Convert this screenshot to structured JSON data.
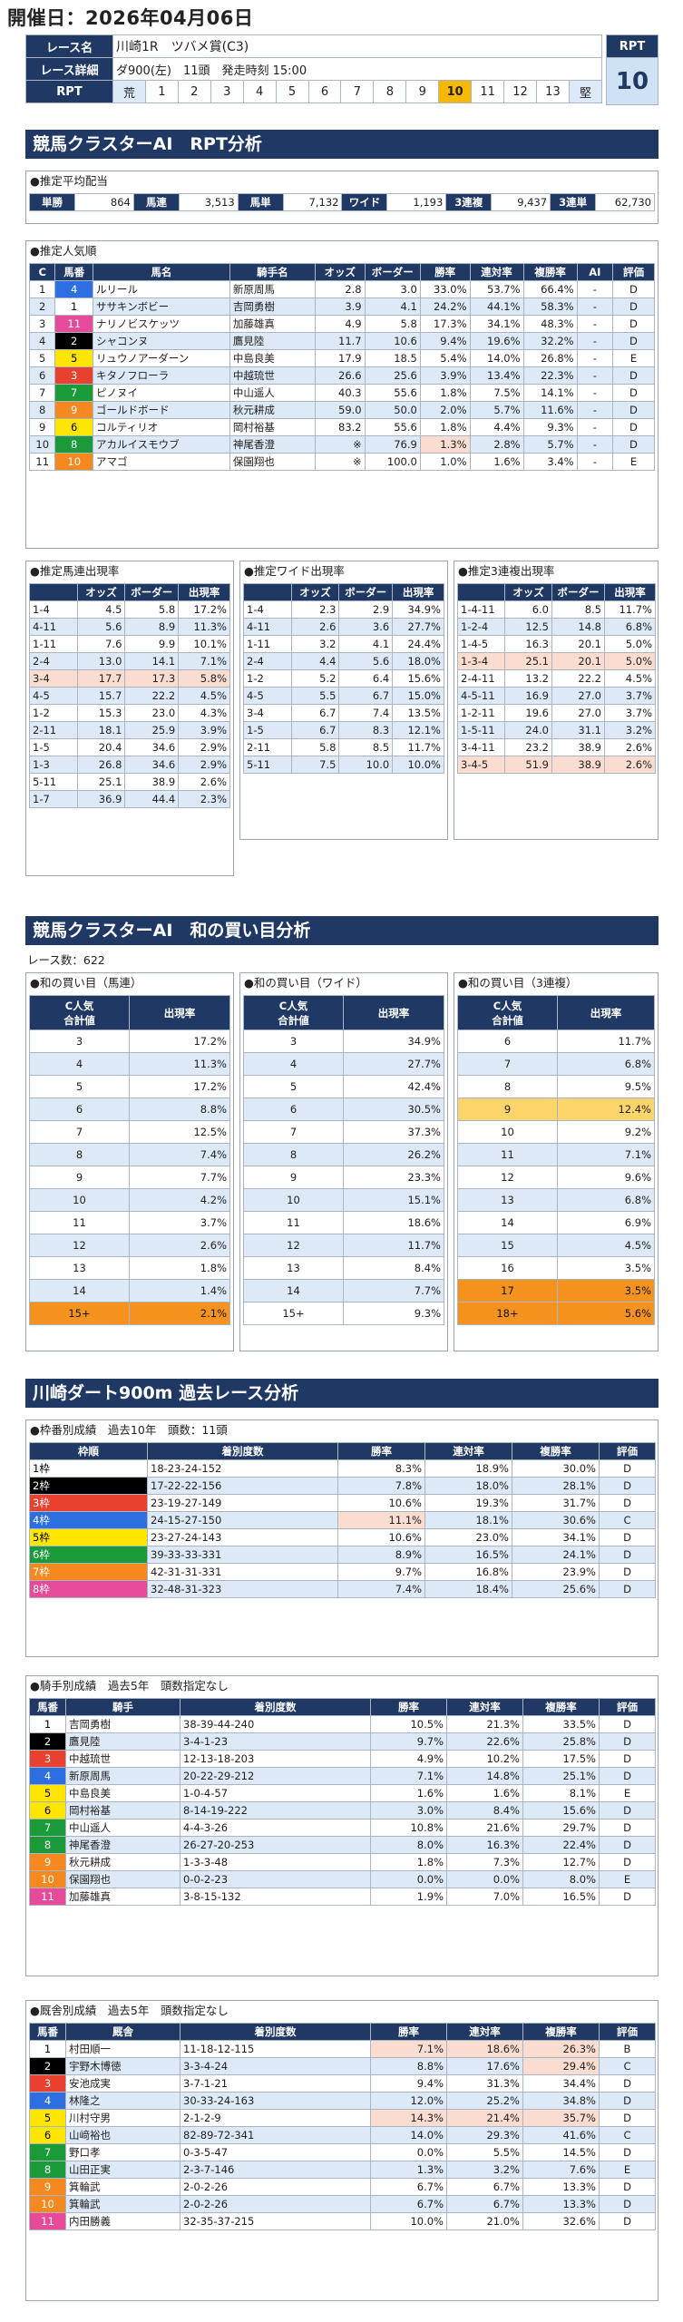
{
  "header": {
    "date": "開催日：2026年04月06日",
    "race_name_label": "レース名",
    "race_name": "川崎1R　ツバメ賞(C3)",
    "race_detail_label": "レース詳細",
    "race_detail": "ダ900(左)　11頭　発走時刻 15:00",
    "rpt_label": "RPT",
    "rpt_scale": [
      "荒",
      "1",
      "2",
      "3",
      "4",
      "5",
      "6",
      "7",
      "8",
      "9",
      "10",
      "11",
      "12",
      "13",
      "堅"
    ],
    "rpt_selected": "10",
    "rpt_box_label": "RPT",
    "rpt_box_value": "10"
  },
  "section1": {
    "title": "競馬クラスターAI　RPT分析"
  },
  "payout": {
    "title": "●推定平均配当",
    "items": [
      {
        "label": "単勝",
        "value": "864"
      },
      {
        "label": "馬連",
        "value": "3,513"
      },
      {
        "label": "馬単",
        "value": "7,132"
      },
      {
        "label": "ワイド",
        "value": "1,193"
      },
      {
        "label": "3連複",
        "value": "9,437"
      },
      {
        "label": "3連単",
        "value": "62,730"
      }
    ]
  },
  "popularity": {
    "title": "●推定人気順",
    "headers": [
      "C",
      "馬番",
      "馬名",
      "騎手名",
      "オッズ",
      "ボーダー",
      "勝率",
      "連対率",
      "複勝率",
      "AI",
      "評価"
    ],
    "rows": [
      [
        "1",
        "4",
        "ルリール",
        "新原周馬",
        "2.8",
        "3.0",
        "33.0%",
        "53.7%",
        "66.4%",
        "-",
        "D"
      ],
      [
        "2",
        "1",
        "ササキンボビー",
        "吉岡勇樹",
        "3.9",
        "4.1",
        "24.2%",
        "44.1%",
        "58.3%",
        "-",
        "D"
      ],
      [
        "3",
        "11",
        "ナリノビスケッツ",
        "加藤雄真",
        "4.9",
        "5.8",
        "17.3%",
        "34.1%",
        "48.3%",
        "-",
        "D"
      ],
      [
        "4",
        "2",
        "シャコンヌ",
        "鷹見陸",
        "11.7",
        "10.6",
        "9.4%",
        "19.6%",
        "32.2%",
        "-",
        "D"
      ],
      [
        "5",
        "5",
        "リュウノアーダーン",
        "中島良美",
        "17.9",
        "18.5",
        "5.4%",
        "14.0%",
        "26.8%",
        "-",
        "E"
      ],
      [
        "6",
        "3",
        "キタノフローラ",
        "中越琉世",
        "26.6",
        "25.6",
        "3.9%",
        "13.4%",
        "22.3%",
        "-",
        "D"
      ],
      [
        "7",
        "7",
        "ピノヌイ",
        "中山遥人",
        "40.3",
        "55.6",
        "1.8%",
        "7.5%",
        "14.1%",
        "-",
        "D"
      ],
      [
        "8",
        "9",
        "ゴールドボード",
        "秋元耕成",
        "59.0",
        "50.0",
        "2.0%",
        "5.7%",
        "11.6%",
        "-",
        "D"
      ],
      [
        "9",
        "6",
        "コルティリオ",
        "岡村裕基",
        "83.2",
        "55.6",
        "1.8%",
        "4.4%",
        "9.3%",
        "-",
        "D"
      ],
      [
        "10",
        "8",
        "アカルイスモウブ",
        "神尾香澄",
        "※",
        "76.9",
        "1.3%",
        "2.8%",
        "5.7%",
        "-",
        "D"
      ],
      [
        "11",
        "10",
        "アマゴ",
        "保園翔也",
        "※",
        "100.0",
        "1.0%",
        "1.6%",
        "3.4%",
        "-",
        "E"
      ]
    ]
  },
  "umaren": {
    "title": "●推定馬連出現率",
    "headers": [
      "",
      "オッズ",
      "ボーダー",
      "出現率"
    ],
    "rows": [
      [
        "1-4",
        "4.5",
        "5.8",
        "17.2%"
      ],
      [
        "4-11",
        "5.6",
        "8.9",
        "11.3%"
      ],
      [
        "1-11",
        "7.6",
        "9.9",
        "10.1%"
      ],
      [
        "2-4",
        "13.0",
        "14.1",
        "7.1%"
      ],
      [
        "3-4",
        "17.7",
        "17.3",
        "5.8%"
      ],
      [
        "4-5",
        "15.7",
        "22.2",
        "4.5%"
      ],
      [
        "1-2",
        "15.3",
        "23.0",
        "4.3%"
      ],
      [
        "2-11",
        "18.1",
        "25.9",
        "3.9%"
      ],
      [
        "1-5",
        "20.4",
        "34.6",
        "2.9%"
      ],
      [
        "1-3",
        "26.8",
        "34.6",
        "2.9%"
      ],
      [
        "5-11",
        "25.1",
        "38.9",
        "2.6%"
      ],
      [
        "1-7",
        "36.9",
        "44.4",
        "2.3%"
      ]
    ]
  },
  "wide": {
    "title": "●推定ワイド出現率",
    "headers": [
      "",
      "オッズ",
      "ボーダー",
      "出現率"
    ],
    "rows": [
      [
        "1-4",
        "2.3",
        "2.9",
        "34.9%"
      ],
      [
        "4-11",
        "2.6",
        "3.6",
        "27.7%"
      ],
      [
        "1-11",
        "3.2",
        "4.1",
        "24.4%"
      ],
      [
        "2-4",
        "4.4",
        "5.6",
        "18.0%"
      ],
      [
        "1-2",
        "5.2",
        "6.4",
        "15.6%"
      ],
      [
        "4-5",
        "5.5",
        "6.7",
        "15.0%"
      ],
      [
        "3-4",
        "6.7",
        "7.4",
        "13.5%"
      ],
      [
        "1-5",
        "6.7",
        "8.3",
        "12.1%"
      ],
      [
        "2-11",
        "5.8",
        "8.5",
        "11.7%"
      ],
      [
        "5-11",
        "7.5",
        "10.0",
        "10.0%"
      ]
    ]
  },
  "sanrenpuku": {
    "title": "●推定3連複出現率",
    "headers": [
      "",
      "オッズ",
      "ボーダー",
      "出現率"
    ],
    "rows": [
      [
        "1-4-11",
        "6.0",
        "8.5",
        "11.7%"
      ],
      [
        "1-2-4",
        "12.5",
        "14.8",
        "6.8%"
      ],
      [
        "1-4-5",
        "16.3",
        "20.1",
        "5.0%"
      ],
      [
        "1-3-4",
        "25.1",
        "20.1",
        "5.0%"
      ],
      [
        "2-4-11",
        "13.2",
        "22.2",
        "4.5%"
      ],
      [
        "4-5-11",
        "16.9",
        "27.0",
        "3.7%"
      ],
      [
        "1-2-11",
        "19.6",
        "27.0",
        "3.7%"
      ],
      [
        "1-5-11",
        "24.0",
        "31.1",
        "3.2%"
      ],
      [
        "3-4-11",
        "23.2",
        "38.9",
        "2.6%"
      ],
      [
        "3-4-5",
        "51.9",
        "38.9",
        "2.6%"
      ]
    ]
  },
  "section2": {
    "title": "競馬クラスターAI　和の買い目分析",
    "race_count": "レース数：622"
  },
  "sum_umaren": {
    "title": "●和の買い目（馬連）",
    "h1": "C人気",
    "h1b": "合計値",
    "h2": "出現率",
    "rows": [
      [
        "3",
        "17.2%"
      ],
      [
        "4",
        "11.3%"
      ],
      [
        "5",
        "17.2%"
      ],
      [
        "6",
        "8.8%"
      ],
      [
        "7",
        "12.5%"
      ],
      [
        "8",
        "7.4%"
      ],
      [
        "9",
        "7.7%"
      ],
      [
        "10",
        "4.2%"
      ],
      [
        "11",
        "3.7%"
      ],
      [
        "12",
        "2.6%"
      ],
      [
        "13",
        "1.8%"
      ],
      [
        "14",
        "1.4%"
      ],
      [
        "15+",
        "2.1%"
      ]
    ]
  },
  "sum_wide": {
    "title": "●和の買い目（ワイド）",
    "h1": "C人気",
    "h1b": "合計値",
    "h2": "出現率",
    "rows": [
      [
        "3",
        "34.9%"
      ],
      [
        "4",
        "27.7%"
      ],
      [
        "5",
        "42.4%"
      ],
      [
        "6",
        "30.5%"
      ],
      [
        "7",
        "37.3%"
      ],
      [
        "8",
        "26.2%"
      ],
      [
        "9",
        "23.3%"
      ],
      [
        "10",
        "15.1%"
      ],
      [
        "11",
        "18.6%"
      ],
      [
        "12",
        "11.7%"
      ],
      [
        "13",
        "8.4%"
      ],
      [
        "14",
        "7.7%"
      ],
      [
        "15+",
        "9.3%"
      ]
    ]
  },
  "sum_sanrenpuku": {
    "title": "●和の買い目（3連複）",
    "h1": "C人気",
    "h1b": "合計値",
    "h2": "出現率",
    "rows": [
      [
        "6",
        "11.7%"
      ],
      [
        "7",
        "6.8%"
      ],
      [
        "8",
        "9.5%"
      ],
      [
        "9",
        "12.4%"
      ],
      [
        "10",
        "9.2%"
      ],
      [
        "11",
        "7.1%"
      ],
      [
        "12",
        "9.6%"
      ],
      [
        "13",
        "6.8%"
      ],
      [
        "14",
        "6.9%"
      ],
      [
        "15",
        "4.5%"
      ],
      [
        "16",
        "3.5%"
      ],
      [
        "17",
        "3.5%"
      ],
      [
        "18+",
        "5.6%"
      ]
    ]
  },
  "section3": {
    "title": "川崎ダート900m 過去レース分析"
  },
  "waku": {
    "title": "●枠番別成績　過去10年　頭数：11頭",
    "headers": [
      "枠順",
      "着別度数",
      "勝率",
      "連対率",
      "複勝率",
      "評価"
    ],
    "rows": [
      [
        "1枠",
        "18-23-24-152",
        "8.3%",
        "18.9%",
        "30.0%",
        "D"
      ],
      [
        "2枠",
        "17-22-22-156",
        "7.8%",
        "18.0%",
        "28.1%",
        "D"
      ],
      [
        "3枠",
        "23-19-27-149",
        "10.6%",
        "19.3%",
        "31.7%",
        "D"
      ],
      [
        "4枠",
        "24-15-27-150",
        "11.1%",
        "18.1%",
        "30.6%",
        "C"
      ],
      [
        "5枠",
        "23-27-24-143",
        "10.6%",
        "23.0%",
        "34.1%",
        "D"
      ],
      [
        "6枠",
        "39-33-33-331",
        "8.9%",
        "16.5%",
        "24.1%",
        "D"
      ],
      [
        "7枠",
        "42-31-31-331",
        "9.7%",
        "16.8%",
        "23.9%",
        "D"
      ],
      [
        "8枠",
        "32-48-31-323",
        "7.4%",
        "18.4%",
        "25.6%",
        "D"
      ]
    ]
  },
  "jockey": {
    "title": "●騎手別成績　過去5年　頭数指定なし",
    "headers": [
      "馬番",
      "騎手",
      "着別度数",
      "勝率",
      "連対率",
      "複勝率",
      "評価"
    ],
    "rows": [
      [
        "1",
        "吉岡勇樹",
        "38-39-44-240",
        "10.5%",
        "21.3%",
        "33.5%",
        "D"
      ],
      [
        "2",
        "鷹見陸",
        "3-4-1-23",
        "9.7%",
        "22.6%",
        "25.8%",
        "D"
      ],
      [
        "3",
        "中越琉世",
        "12-13-18-203",
        "4.9%",
        "10.2%",
        "17.5%",
        "D"
      ],
      [
        "4",
        "新原周馬",
        "20-22-29-212",
        "7.1%",
        "14.8%",
        "25.1%",
        "D"
      ],
      [
        "5",
        "中島良美",
        "1-0-4-57",
        "1.6%",
        "1.6%",
        "8.1%",
        "E"
      ],
      [
        "6",
        "岡村裕基",
        "8-14-19-222",
        "3.0%",
        "8.4%",
        "15.6%",
        "D"
      ],
      [
        "7",
        "中山遥人",
        "4-4-3-26",
        "10.8%",
        "21.6%",
        "29.7%",
        "D"
      ],
      [
        "8",
        "神尾香澄",
        "26-27-20-253",
        "8.0%",
        "16.3%",
        "22.4%",
        "D"
      ],
      [
        "9",
        "秋元耕成",
        "1-3-3-48",
        "1.8%",
        "7.3%",
        "12.7%",
        "D"
      ],
      [
        "10",
        "保園翔也",
        "0-0-2-23",
        "0.0%",
        "0.0%",
        "8.0%",
        "E"
      ],
      [
        "11",
        "加藤雄真",
        "3-8-15-132",
        "1.9%",
        "7.0%",
        "16.5%",
        "D"
      ]
    ]
  },
  "trainer": {
    "title": "●厩舎別成績　過去5年　頭数指定なし",
    "headers": [
      "馬番",
      "厩舎",
      "着別度数",
      "勝率",
      "連対率",
      "複勝率",
      "評価"
    ],
    "rows": [
      [
        "1",
        "村田順一",
        "11-18-12-115",
        "7.1%",
        "18.6%",
        "26.3%",
        "B"
      ],
      [
        "2",
        "宇野木博徳",
        "3-3-4-24",
        "8.8%",
        "17.6%",
        "29.4%",
        "C"
      ],
      [
        "3",
        "安池成実",
        "3-7-1-21",
        "9.4%",
        "31.3%",
        "34.4%",
        "D"
      ],
      [
        "4",
        "林隆之",
        "30-33-24-163",
        "12.0%",
        "25.2%",
        "34.8%",
        "D"
      ],
      [
        "5",
        "川村守男",
        "2-1-2-9",
        "14.3%",
        "21.4%",
        "35.7%",
        "D"
      ],
      [
        "6",
        "山﨑裕也",
        "82-89-72-341",
        "14.0%",
        "29.3%",
        "41.6%",
        "C"
      ],
      [
        "7",
        "野口孝",
        "0-3-5-47",
        "0.0%",
        "5.5%",
        "14.5%",
        "D"
      ],
      [
        "8",
        "山田正実",
        "2-3-7-146",
        "1.3%",
        "3.2%",
        "7.6%",
        "E"
      ],
      [
        "9",
        "箕輪武",
        "2-0-2-26",
        "6.7%",
        "6.7%",
        "13.3%",
        "D"
      ],
      [
        "10",
        "箕輪武",
        "2-0-2-26",
        "6.7%",
        "6.7%",
        "13.3%",
        "D"
      ],
      [
        "11",
        "内田勝義",
        "32-35-37-215",
        "10.0%",
        "21.0%",
        "32.6%",
        "D"
      ]
    ]
  }
}
